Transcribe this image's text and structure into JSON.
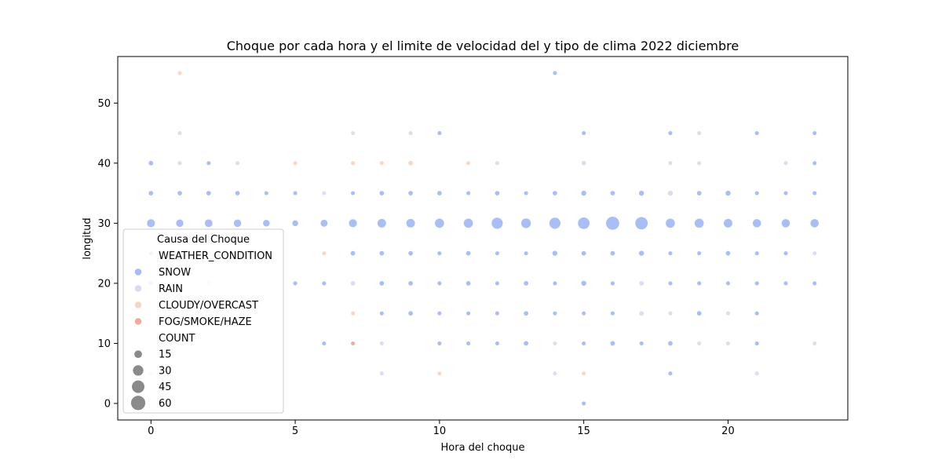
{
  "chart_data": {
    "type": "scatter",
    "title": "Choque por cada hora y el limite de velocidad del y tipo de clima 2022 diciembre",
    "xlabel": "Hora del choque",
    "ylabel": "longitud",
    "xlim": [
      -1.15,
      24.15
    ],
    "ylim": [
      -2.75,
      57.75
    ],
    "xticks": [
      0,
      5,
      10,
      15,
      20
    ],
    "yticks": [
      0,
      10,
      20,
      30,
      40,
      50
    ],
    "grid": false,
    "legend": {
      "title": "Causa del Choque",
      "placement": "lower-left",
      "hue_header": "WEATHER_CONDITION",
      "size_header": "COUNT",
      "hue_entries": [
        {
          "label": "SNOW",
          "color": "#a3baf3"
        },
        {
          "label": "RAIN",
          "color": "#d9dcf0"
        },
        {
          "label": "CLOUDY/OVERCAST",
          "color": "#f7d6c2"
        },
        {
          "label": "FOG/SMOKE/HAZE",
          "color": "#eeac98"
        }
      ],
      "size_entries": [
        15,
        30,
        45,
        60
      ],
      "size_entry_color": "#8a8a8a"
    },
    "series": [
      {
        "name": "SNOW",
        "color": "#a3baf3",
        "points": [
          [
            0,
            40,
            3
          ],
          [
            0,
            35,
            3
          ],
          [
            0,
            30,
            12
          ],
          [
            0,
            25,
            2
          ],
          [
            0,
            20,
            2
          ],
          [
            1,
            35,
            3
          ],
          [
            1,
            30,
            10
          ],
          [
            2,
            40,
            2
          ],
          [
            2,
            35,
            3
          ],
          [
            2,
            30,
            11
          ],
          [
            3,
            35,
            3
          ],
          [
            3,
            30,
            10
          ],
          [
            4,
            35,
            2
          ],
          [
            4,
            30,
            8
          ],
          [
            5,
            35,
            2
          ],
          [
            5,
            30,
            6
          ],
          [
            5,
            20,
            2
          ],
          [
            6,
            30,
            9
          ],
          [
            6,
            20,
            2
          ],
          [
            6,
            10,
            2
          ],
          [
            7,
            35,
            2
          ],
          [
            7,
            30,
            12
          ],
          [
            7,
            25,
            3
          ],
          [
            8,
            35,
            3
          ],
          [
            8,
            30,
            14
          ],
          [
            8,
            25,
            3
          ],
          [
            8,
            20,
            3
          ],
          [
            8,
            15,
            2
          ],
          [
            9,
            35,
            3
          ],
          [
            9,
            30,
            14
          ],
          [
            9,
            25,
            3
          ],
          [
            9,
            20,
            3
          ],
          [
            9,
            15,
            3
          ],
          [
            10,
            45,
            2
          ],
          [
            10,
            35,
            3
          ],
          [
            10,
            30,
            16
          ],
          [
            10,
            25,
            2
          ],
          [
            10,
            20,
            2
          ],
          [
            10,
            15,
            2
          ],
          [
            10,
            10,
            2
          ],
          [
            11,
            35,
            2
          ],
          [
            11,
            30,
            16
          ],
          [
            11,
            25,
            3
          ],
          [
            11,
            20,
            3
          ],
          [
            11,
            15,
            2
          ],
          [
            11,
            10,
            2
          ],
          [
            12,
            35,
            3
          ],
          [
            12,
            30,
            24
          ],
          [
            12,
            25,
            2
          ],
          [
            12,
            20,
            2
          ],
          [
            12,
            15,
            2
          ],
          [
            12,
            10,
            2
          ],
          [
            13,
            35,
            2
          ],
          [
            13,
            30,
            18
          ],
          [
            13,
            25,
            2
          ],
          [
            13,
            20,
            3
          ],
          [
            13,
            15,
            3
          ],
          [
            13,
            10,
            3
          ],
          [
            14,
            55,
            2
          ],
          [
            14,
            35,
            3
          ],
          [
            14,
            30,
            24
          ],
          [
            14,
            25,
            4
          ],
          [
            14,
            20,
            2
          ],
          [
            14,
            15,
            2
          ],
          [
            15,
            45,
            2
          ],
          [
            15,
            35,
            4
          ],
          [
            15,
            30,
            26
          ],
          [
            15,
            25,
            3
          ],
          [
            15,
            20,
            4
          ],
          [
            15,
            15,
            2
          ],
          [
            15,
            10,
            2
          ],
          [
            15,
            0,
            2
          ],
          [
            16,
            35,
            3
          ],
          [
            16,
            30,
            34
          ],
          [
            16,
            25,
            3
          ],
          [
            16,
            20,
            2
          ],
          [
            16,
            15,
            2
          ],
          [
            16,
            10,
            3
          ],
          [
            17,
            35,
            4
          ],
          [
            17,
            30,
            30
          ],
          [
            17,
            25,
            4
          ],
          [
            17,
            10,
            2
          ],
          [
            18,
            45,
            2
          ],
          [
            18,
            30,
            16
          ],
          [
            18,
            25,
            2
          ],
          [
            18,
            20,
            2
          ],
          [
            18,
            10,
            3
          ],
          [
            18,
            5,
            2
          ],
          [
            19,
            35,
            3
          ],
          [
            19,
            30,
            16
          ],
          [
            19,
            25,
            2
          ],
          [
            19,
            20,
            2
          ],
          [
            19,
            15,
            3
          ],
          [
            20,
            35,
            4
          ],
          [
            20,
            30,
            14
          ],
          [
            20,
            25,
            3
          ],
          [
            20,
            20,
            2
          ],
          [
            21,
            45,
            2
          ],
          [
            21,
            35,
            2
          ],
          [
            21,
            30,
            13
          ],
          [
            21,
            25,
            2
          ],
          [
            21,
            20,
            2
          ],
          [
            21,
            15,
            2
          ],
          [
            21,
            10,
            2
          ],
          [
            22,
            35,
            2
          ],
          [
            22,
            30,
            13
          ],
          [
            22,
            25,
            2
          ],
          [
            22,
            20,
            2
          ],
          [
            23,
            45,
            2
          ],
          [
            23,
            40,
            2
          ],
          [
            23,
            35,
            2
          ],
          [
            23,
            30,
            13
          ],
          [
            23,
            20,
            2
          ]
        ]
      },
      {
        "name": "RAIN",
        "color": "#d9dcf0",
        "points": [
          [
            0,
            5,
            2
          ],
          [
            1,
            45,
            2
          ],
          [
            1,
            40,
            2
          ],
          [
            2,
            20,
            2
          ],
          [
            3,
            40,
            2
          ],
          [
            6,
            35,
            2
          ],
          [
            7,
            45,
            2
          ],
          [
            7,
            20,
            3
          ],
          [
            8,
            10,
            2
          ],
          [
            8,
            5,
            2
          ],
          [
            9,
            45,
            2
          ],
          [
            12,
            40,
            2
          ],
          [
            14,
            10,
            2
          ],
          [
            14,
            5,
            2
          ],
          [
            15,
            40,
            3
          ],
          [
            17,
            20,
            3
          ],
          [
            17,
            15,
            3
          ],
          [
            18,
            40,
            2
          ],
          [
            18,
            35,
            4
          ],
          [
            18,
            15,
            2
          ],
          [
            19,
            45,
            2
          ],
          [
            19,
            40,
            2
          ],
          [
            19,
            10,
            2
          ],
          [
            20,
            15,
            2
          ],
          [
            20,
            10,
            2
          ],
          [
            21,
            5,
            2
          ],
          [
            22,
            40,
            2
          ],
          [
            23,
            25,
            2
          ],
          [
            23,
            10,
            2
          ]
        ]
      },
      {
        "name": "CLOUDY/OVERCAST",
        "color": "#f7d6c2",
        "points": [
          [
            1,
            55,
            2
          ],
          [
            5,
            40,
            2
          ],
          [
            6,
            25,
            2
          ],
          [
            7,
            40,
            2
          ],
          [
            7,
            15,
            2
          ],
          [
            8,
            40,
            2
          ],
          [
            9,
            40,
            3
          ],
          [
            10,
            5,
            2
          ],
          [
            11,
            40,
            2
          ],
          [
            15,
            5,
            2
          ]
        ]
      },
      {
        "name": "FOG/SMOKE/HAZE",
        "color": "#eeac98",
        "points": [
          [
            7,
            10,
            2
          ]
        ]
      }
    ]
  }
}
